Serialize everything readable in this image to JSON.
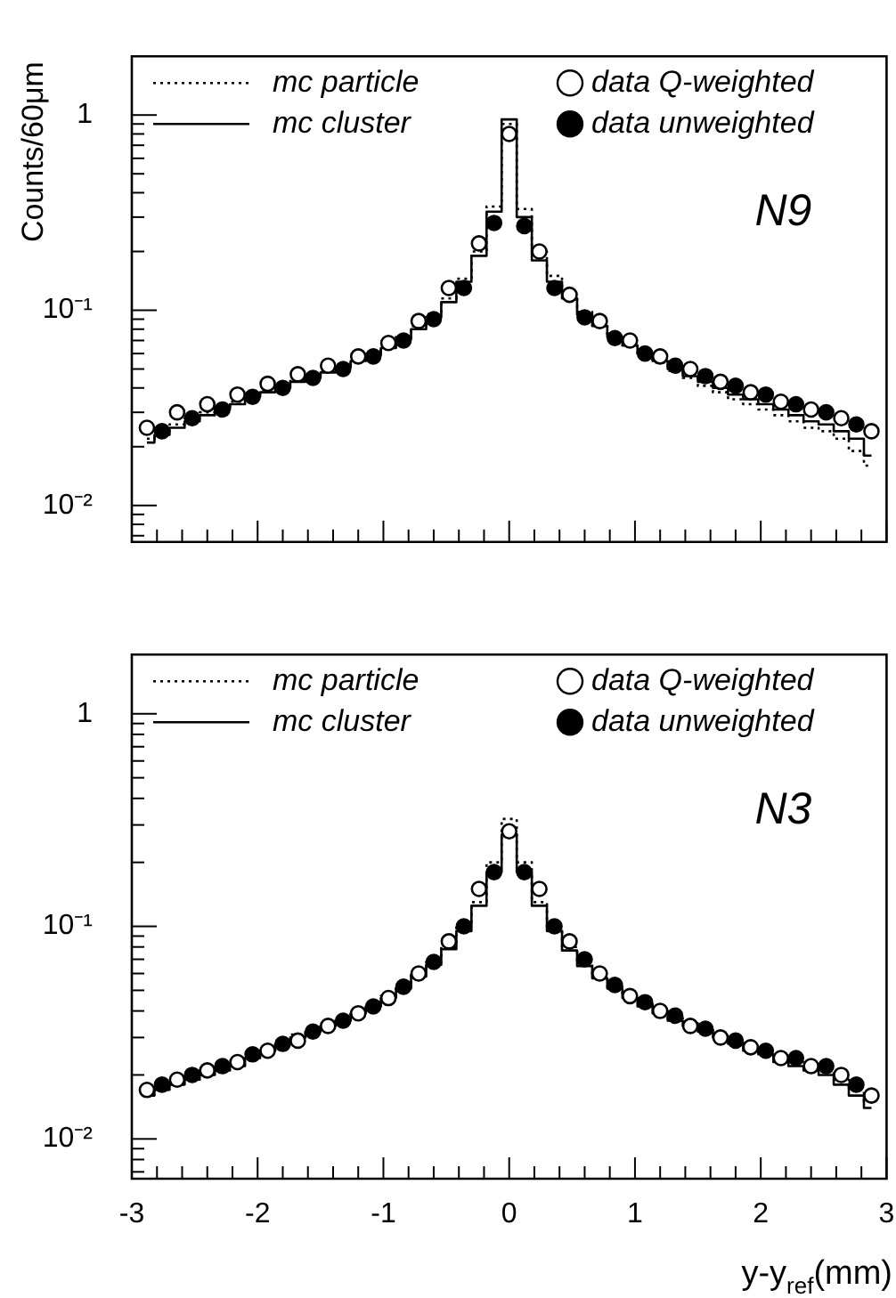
{
  "chart_data": [
    {
      "type": "scatter",
      "ylabel": "Counts/60μm",
      "annotations": [
        "N9"
      ],
      "legend": "top",
      "grid": false,
      "log": "y",
      "tick_labels": "y",
      "xlim": [
        -3,
        3
      ],
      "xticks": [
        -3,
        {
          "value": -2.8,
          "label": null
        },
        {
          "value": -2.6,
          "label": null
        },
        {
          "value": -2.4,
          "label": null
        },
        {
          "value": -2.2,
          "label": null
        },
        -2,
        {
          "value": -1.8,
          "label": null
        },
        {
          "value": -1.6,
          "label": null
        },
        {
          "value": -1.4,
          "label": null
        },
        {
          "value": -1.2,
          "label": null
        },
        -1,
        {
          "value": -0.8,
          "label": null
        },
        {
          "value": -0.6,
          "label": null
        },
        {
          "value": -0.4,
          "label": null
        },
        {
          "value": -0.2,
          "label": null
        },
        0,
        {
          "value": 0.2,
          "label": null
        },
        {
          "value": 0.4,
          "label": null
        },
        {
          "value": 0.6,
          "label": null
        },
        {
          "value": 0.8,
          "label": null
        },
        1,
        {
          "value": 1.2,
          "label": null
        },
        {
          "value": 1.4,
          "label": null
        },
        {
          "value": 1.6,
          "label": null
        },
        {
          "value": 1.8,
          "label": null
        },
        2,
        {
          "value": 2.2,
          "label": null
        },
        {
          "value": 2.4,
          "label": null
        },
        {
          "value": 2.6,
          "label": null
        },
        {
          "value": 2.8,
          "label": null
        },
        3
      ],
      "ylim": [
        0.0065,
        2
      ],
      "yticks": [
        {
          "value": 0.007,
          "label": null
        },
        {
          "value": 0.008,
          "label": null
        },
        {
          "value": 0.009,
          "label": null
        },
        {
          "value": 0.01,
          "label": "10⁻²"
        },
        {
          "value": 0.02,
          "label": null
        },
        {
          "value": 0.03,
          "label": null
        },
        {
          "value": 0.04,
          "label": null
        },
        {
          "value": 0.05,
          "label": null
        },
        {
          "value": 0.06,
          "label": null
        },
        {
          "value": 0.07,
          "label": null
        },
        {
          "value": 0.08,
          "label": null
        },
        {
          "value": 0.09,
          "label": null
        },
        {
          "value": 0.1,
          "label": "10⁻¹"
        },
        {
          "value": 0.2,
          "label": null
        },
        {
          "value": 0.3,
          "label": null
        },
        {
          "value": 0.4,
          "label": null
        },
        {
          "value": 0.5,
          "label": null
        },
        {
          "value": 0.6,
          "label": null
        },
        {
          "value": 0.7,
          "label": null
        },
        {
          "value": 0.8,
          "label": null
        },
        {
          "value": 0.9,
          "label": null
        },
        1
      ],
      "series": [
        {
          "name": "mc particle",
          "type": "step",
          "line_style": "dotted",
          "marker": "none",
          "color": "#000000",
          "x": [
            -2.88,
            -2.76,
            -2.64,
            -2.52,
            -2.4,
            -2.28,
            -2.16,
            -2.04,
            -1.92,
            -1.8,
            -1.68,
            -1.56,
            -1.44,
            -1.32,
            -1.2,
            -1.08,
            -0.96,
            -0.84,
            -0.72,
            -0.6,
            -0.48,
            -0.36,
            -0.24,
            -0.12,
            0,
            0.12,
            0.24,
            0.36,
            0.48,
            0.6,
            0.72,
            0.84,
            0.96,
            1.08,
            1.2,
            1.32,
            1.44,
            1.56,
            1.68,
            1.8,
            1.92,
            2.04,
            2.16,
            2.28,
            2.4,
            2.52,
            2.64,
            2.76,
            2.88
          ],
          "values": [
            0.022,
            0.024,
            0.026,
            0.028,
            0.03,
            0.032,
            0.034,
            0.037,
            0.039,
            0.041,
            0.044,
            0.046,
            0.049,
            0.052,
            0.056,
            0.06,
            0.066,
            0.073,
            0.083,
            0.096,
            0.115,
            0.145,
            0.2,
            0.34,
            0.9,
            0.33,
            0.2,
            0.15,
            0.12,
            0.098,
            0.085,
            0.074,
            0.066,
            0.06,
            0.054,
            0.049,
            0.045,
            0.041,
            0.038,
            0.035,
            0.033,
            0.031,
            0.029,
            0.027,
            0.025,
            0.024,
            0.022,
            0.019,
            0.016
          ]
        },
        {
          "name": "mc cluster",
          "type": "step",
          "line_style": "solid",
          "marker": "none",
          "color": "#000000",
          "x": [
            -2.88,
            -2.76,
            -2.64,
            -2.52,
            -2.4,
            -2.28,
            -2.16,
            -2.04,
            -1.92,
            -1.8,
            -1.68,
            -1.56,
            -1.44,
            -1.32,
            -1.2,
            -1.08,
            -0.96,
            -0.84,
            -0.72,
            -0.6,
            -0.48,
            -0.36,
            -0.24,
            -0.12,
            0,
            0.12,
            0.24,
            0.36,
            0.48,
            0.6,
            0.72,
            0.84,
            0.96,
            1.08,
            1.2,
            1.32,
            1.44,
            1.56,
            1.68,
            1.8,
            1.92,
            2.04,
            2.16,
            2.28,
            2.4,
            2.52,
            2.64,
            2.76,
            2.88
          ],
          "values": [
            0.021,
            0.023,
            0.025,
            0.027,
            0.029,
            0.031,
            0.033,
            0.036,
            0.038,
            0.04,
            0.043,
            0.045,
            0.048,
            0.051,
            0.055,
            0.059,
            0.064,
            0.071,
            0.08,
            0.092,
            0.11,
            0.14,
            0.19,
            0.32,
            0.95,
            0.3,
            0.18,
            0.14,
            0.115,
            0.095,
            0.083,
            0.073,
            0.066,
            0.06,
            0.055,
            0.05,
            0.046,
            0.043,
            0.04,
            0.037,
            0.035,
            0.033,
            0.031,
            0.029,
            0.027,
            0.026,
            0.024,
            0.022,
            0.018
          ]
        },
        {
          "name": "data Q-weighted",
          "type": "scatter",
          "marker": "circle",
          "color": "#ffffff",
          "x": [
            -2.88,
            -2.64,
            -2.4,
            -2.16,
            -1.92,
            -1.68,
            -1.44,
            -1.2,
            -0.96,
            -0.72,
            -0.48,
            -0.24,
            0,
            0.24,
            0.48,
            0.72,
            0.96,
            1.2,
            1.44,
            1.68,
            1.92,
            2.16,
            2.4,
            2.64,
            2.88
          ],
          "values": [
            0.025,
            0.03,
            0.033,
            0.037,
            0.042,
            0.047,
            0.052,
            0.058,
            0.068,
            0.088,
            0.13,
            0.22,
            0.8,
            0.2,
            0.12,
            0.088,
            0.07,
            0.058,
            0.05,
            0.043,
            0.038,
            0.034,
            0.031,
            0.028,
            0.024
          ]
        },
        {
          "name": "data unweighted",
          "type": "scatter",
          "marker": "circle",
          "color": "#000000",
          "x": [
            -2.76,
            -2.52,
            -2.28,
            -2.04,
            -1.8,
            -1.56,
            -1.32,
            -1.08,
            -0.84,
            -0.6,
            -0.36,
            -0.12,
            0.12,
            0.36,
            0.6,
            0.84,
            1.08,
            1.32,
            1.56,
            1.8,
            2.04,
            2.28,
            2.52,
            2.76
          ],
          "values": [
            0.024,
            0.028,
            0.031,
            0.036,
            0.04,
            0.045,
            0.05,
            0.058,
            0.07,
            0.09,
            0.13,
            0.28,
            0.27,
            0.13,
            0.092,
            0.072,
            0.06,
            0.052,
            0.046,
            0.041,
            0.037,
            0.033,
            0.03,
            0.026
          ]
        }
      ]
    },
    {
      "type": "scatter",
      "xlabel": "y-y$_{ref}$(mm)",
      "annotations": [
        "N3"
      ],
      "legend": "top",
      "grid": false,
      "log": "y",
      "xlim": [
        -3,
        3
      ],
      "xticks": [
        -3,
        {
          "value": -2.8,
          "label": null
        },
        {
          "value": -2.6,
          "label": null
        },
        {
          "value": -2.4,
          "label": null
        },
        {
          "value": -2.2,
          "label": null
        },
        -2,
        {
          "value": -1.8,
          "label": null
        },
        {
          "value": -1.6,
          "label": null
        },
        {
          "value": -1.4,
          "label": null
        },
        {
          "value": -1.2,
          "label": null
        },
        -1,
        {
          "value": -0.8,
          "label": null
        },
        {
          "value": -0.6,
          "label": null
        },
        {
          "value": -0.4,
          "label": null
        },
        {
          "value": -0.2,
          "label": null
        },
        0,
        {
          "value": 0.2,
          "label": null
        },
        {
          "value": 0.4,
          "label": null
        },
        {
          "value": 0.6,
          "label": null
        },
        {
          "value": 0.8,
          "label": null
        },
        1,
        {
          "value": 1.2,
          "label": null
        },
        {
          "value": 1.4,
          "label": null
        },
        {
          "value": 1.6,
          "label": null
        },
        {
          "value": 1.8,
          "label": null
        },
        2,
        {
          "value": 2.2,
          "label": null
        },
        {
          "value": 2.4,
          "label": null
        },
        {
          "value": 2.6,
          "label": null
        },
        {
          "value": 2.8,
          "label": null
        },
        3
      ],
      "ylim": [
        0.0065,
        1.9
      ],
      "yticks": [
        {
          "value": 0.007,
          "label": null
        },
        {
          "value": 0.008,
          "label": null
        },
        {
          "value": 0.009,
          "label": null
        },
        {
          "value": 0.01,
          "label": "10⁻²"
        },
        {
          "value": 0.02,
          "label": null
        },
        {
          "value": 0.03,
          "label": null
        },
        {
          "value": 0.04,
          "label": null
        },
        {
          "value": 0.05,
          "label": null
        },
        {
          "value": 0.06,
          "label": null
        },
        {
          "value": 0.07,
          "label": null
        },
        {
          "value": 0.08,
          "label": null
        },
        {
          "value": 0.09,
          "label": null
        },
        {
          "value": 0.1,
          "label": "10⁻¹"
        },
        {
          "value": 0.2,
          "label": null
        },
        {
          "value": 0.3,
          "label": null
        },
        {
          "value": 0.4,
          "label": null
        },
        {
          "value": 0.5,
          "label": null
        },
        {
          "value": 0.6,
          "label": null
        },
        {
          "value": 0.7,
          "label": null
        },
        {
          "value": 0.8,
          "label": null
        },
        {
          "value": 0.9,
          "label": null
        },
        1
      ],
      "series": [
        {
          "name": "mc particle",
          "type": "step",
          "line_style": "dotted",
          "marker": "none",
          "color": "#000000",
          "x": [
            -2.88,
            -2.76,
            -2.64,
            -2.52,
            -2.4,
            -2.28,
            -2.16,
            -2.04,
            -1.92,
            -1.8,
            -1.68,
            -1.56,
            -1.44,
            -1.32,
            -1.2,
            -1.08,
            -0.96,
            -0.84,
            -0.72,
            -0.6,
            -0.48,
            -0.36,
            -0.24,
            -0.12,
            0,
            0.12,
            0.24,
            0.36,
            0.48,
            0.6,
            0.72,
            0.84,
            0.96,
            1.08,
            1.2,
            1.32,
            1.44,
            1.56,
            1.68,
            1.8,
            1.92,
            2.04,
            2.16,
            2.28,
            2.4,
            2.52,
            2.64,
            2.76,
            2.88
          ],
          "values": [
            0.017,
            0.018,
            0.019,
            0.02,
            0.021,
            0.022,
            0.023,
            0.025,
            0.027,
            0.029,
            0.031,
            0.033,
            0.035,
            0.037,
            0.04,
            0.043,
            0.047,
            0.053,
            0.06,
            0.068,
            0.08,
            0.1,
            0.13,
            0.2,
            0.32,
            0.2,
            0.13,
            0.098,
            0.08,
            0.067,
            0.059,
            0.052,
            0.047,
            0.043,
            0.04,
            0.037,
            0.035,
            0.033,
            0.031,
            0.029,
            0.027,
            0.026,
            0.024,
            0.023,
            0.022,
            0.021,
            0.019,
            0.017,
            0.015
          ]
        },
        {
          "name": "mc cluster",
          "type": "step",
          "line_style": "solid",
          "marker": "none",
          "color": "#000000",
          "x": [
            -2.88,
            -2.76,
            -2.64,
            -2.52,
            -2.4,
            -2.28,
            -2.16,
            -2.04,
            -1.92,
            -1.8,
            -1.68,
            -1.56,
            -1.44,
            -1.32,
            -1.2,
            -1.08,
            -0.96,
            -0.84,
            -0.72,
            -0.6,
            -0.48,
            -0.36,
            -0.24,
            -0.12,
            0,
            0.12,
            0.24,
            0.36,
            0.48,
            0.6,
            0.72,
            0.84,
            0.96,
            1.08,
            1.2,
            1.32,
            1.44,
            1.56,
            1.68,
            1.8,
            1.92,
            2.04,
            2.16,
            2.28,
            2.4,
            2.52,
            2.64,
            2.76,
            2.88
          ],
          "values": [
            0.016,
            0.017,
            0.018,
            0.019,
            0.02,
            0.021,
            0.022,
            0.024,
            0.026,
            0.028,
            0.03,
            0.032,
            0.034,
            0.036,
            0.039,
            0.042,
            0.046,
            0.051,
            0.058,
            0.066,
            0.078,
            0.095,
            0.125,
            0.18,
            0.27,
            0.18,
            0.125,
            0.095,
            0.077,
            0.065,
            0.057,
            0.051,
            0.046,
            0.042,
            0.039,
            0.036,
            0.034,
            0.032,
            0.03,
            0.028,
            0.026,
            0.025,
            0.023,
            0.022,
            0.021,
            0.02,
            0.018,
            0.016,
            0.014
          ]
        },
        {
          "name": "data Q-weighted",
          "type": "scatter",
          "marker": "circle",
          "color": "#ffffff",
          "x": [
            -2.88,
            -2.64,
            -2.4,
            -2.16,
            -1.92,
            -1.68,
            -1.44,
            -1.2,
            -0.96,
            -0.72,
            -0.48,
            -0.24,
            0,
            0.24,
            0.48,
            0.72,
            0.96,
            1.2,
            1.44,
            1.68,
            1.92,
            2.16,
            2.4,
            2.64,
            2.88
          ],
          "values": [
            0.017,
            0.019,
            0.021,
            0.023,
            0.026,
            0.029,
            0.034,
            0.039,
            0.046,
            0.06,
            0.085,
            0.15,
            0.28,
            0.15,
            0.085,
            0.06,
            0.047,
            0.04,
            0.034,
            0.03,
            0.027,
            0.024,
            0.022,
            0.02,
            0.016
          ]
        },
        {
          "name": "data unweighted",
          "type": "scatter",
          "marker": "circle",
          "color": "#000000",
          "x": [
            -2.76,
            -2.52,
            -2.28,
            -2.04,
            -1.8,
            -1.56,
            -1.32,
            -1.08,
            -0.84,
            -0.6,
            -0.36,
            -0.12,
            0.12,
            0.36,
            0.6,
            0.84,
            1.08,
            1.32,
            1.56,
            1.8,
            2.04,
            2.28,
            2.52,
            2.76
          ],
          "values": [
            0.018,
            0.02,
            0.022,
            0.025,
            0.028,
            0.032,
            0.036,
            0.042,
            0.052,
            0.068,
            0.1,
            0.18,
            0.18,
            0.1,
            0.07,
            0.053,
            0.044,
            0.038,
            0.033,
            0.029,
            0.026,
            0.024,
            0.022,
            0.018
          ]
        }
      ]
    }
  ]
}
